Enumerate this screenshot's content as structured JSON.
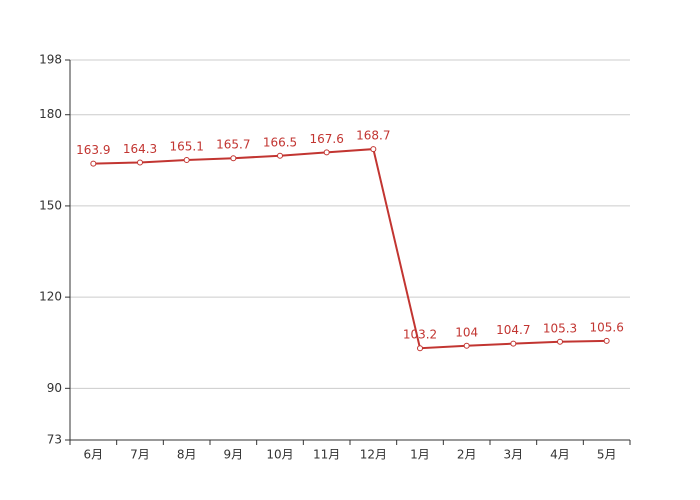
{
  "chart_data": {
    "type": "line",
    "categories": [
      "6月",
      "7月",
      "8月",
      "9月",
      "10月",
      "11月",
      "12月",
      "1月",
      "2月",
      "3月",
      "4月",
      "5月"
    ],
    "series": [
      {
        "color": "#c23531",
        "values": [
          163.9,
          164.3,
          165.1,
          165.7,
          166.5,
          167.6,
          168.7,
          103.2,
          104,
          104.7,
          105.3,
          105.6
        ]
      }
    ],
    "ylim": [
      73,
      198
    ],
    "yticks": [
      73,
      90,
      120,
      150,
      180,
      198
    ],
    "grid": true
  }
}
